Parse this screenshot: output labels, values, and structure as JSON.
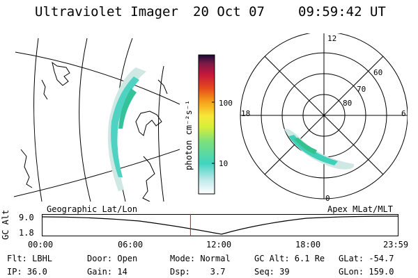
{
  "header": {
    "title": "Ultraviolet Imager",
    "date": "20 Oct 07",
    "time": "09:59:42 UT"
  },
  "colorbar": {
    "unit_label": "photon cm⁻²s⁻¹",
    "ticks": [
      "100",
      "10"
    ],
    "scale": "log"
  },
  "geo_panel": {
    "label": "Geographic Lat/Lon"
  },
  "polar_panel": {
    "label": "Apex MLat/MLT",
    "mlt_labels": [
      "12",
      "18",
      "6",
      "0"
    ],
    "lat_labels": [
      "60",
      "70",
      "80"
    ]
  },
  "altitude_plot": {
    "axis_label": "GC Alt",
    "y_ticks": [
      "9.0",
      "1.8"
    ],
    "x_ticks": [
      "00:00",
      "06:00",
      "12:00",
      "18:00",
      "23:59"
    ],
    "current_time_marker": "09:59:42",
    "marker_color": "#ff0000"
  },
  "status": {
    "row1": {
      "flt": "Flt: LBHL",
      "door": "Door: Open",
      "mode": "Mode: Normal",
      "gc_alt": "GC Alt: 6.1 Re",
      "glat": "GLat: -54.7"
    },
    "row2": {
      "ip": "IP: 36.0",
      "gain": "Gain: 14",
      "dsp": "Dsp:    3.7",
      "seq": "Seq: 39",
      "glon": "GLon: 159.0"
    }
  }
}
